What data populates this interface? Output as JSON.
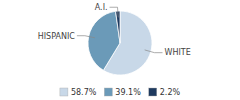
{
  "chart_data": {
    "type": "pie",
    "categories": [
      "WHITE",
      "HISPANIC",
      "A.I."
    ],
    "values": [
      58.7,
      39.1,
      2.2
    ],
    "value_labels": [
      "58.7%",
      "39.1%",
      "2.2%"
    ],
    "colors": [
      "#c8d8e8",
      "#6b9ab8",
      "#1e3a5f"
    ],
    "legend": "bottom"
  }
}
